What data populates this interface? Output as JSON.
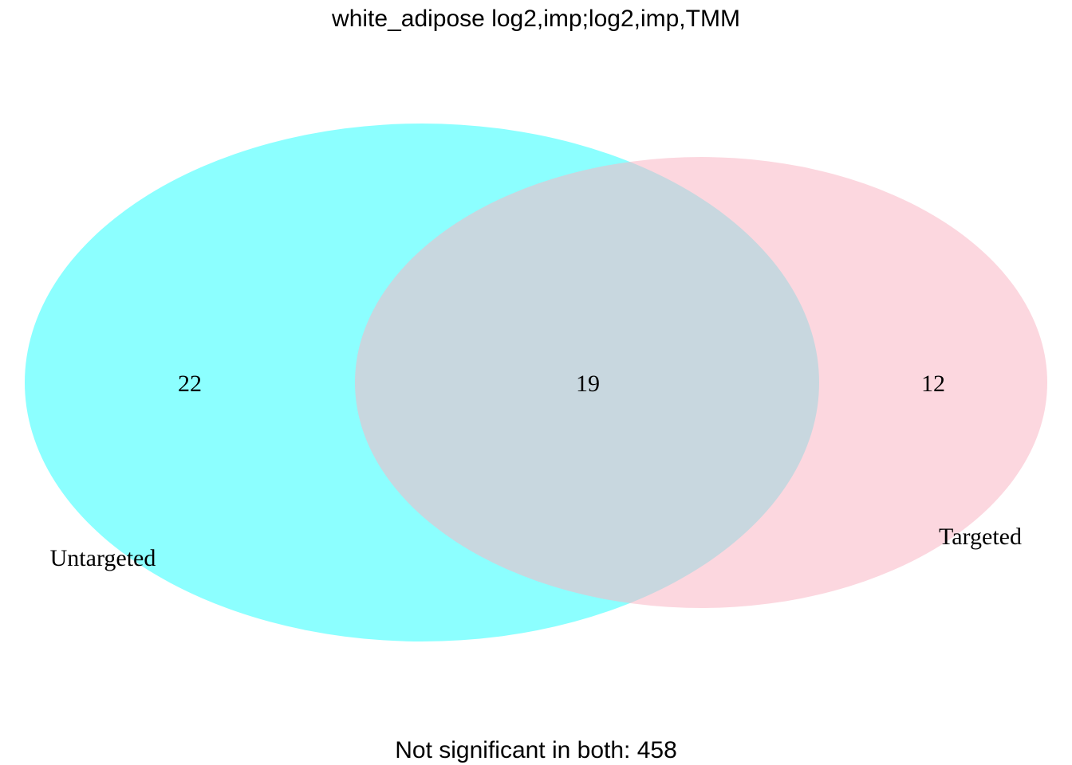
{
  "title": "white_adipose log2,imp;log2,imp,TMM",
  "sets": [
    {
      "id": "untargeted",
      "label": "Untargeted",
      "color": "#00FFFF",
      "opacity": 0.45
    },
    {
      "id": "targeted",
      "label": "Targeted",
      "color": "#F9B6C4",
      "opacity": 0.55
    }
  ],
  "counts": {
    "untargeted_only": "22",
    "both": "19",
    "targeted_only": "12"
  },
  "footer": "Not significant in both: 458"
}
